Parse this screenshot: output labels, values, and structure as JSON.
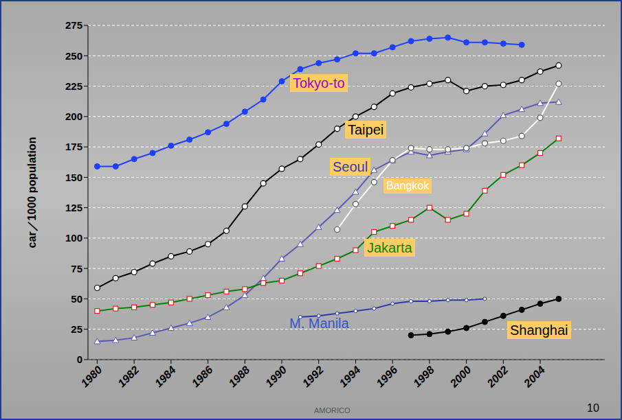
{
  "chart_data": {
    "type": "line",
    "y_label": "car／1000 population",
    "x": [
      1980,
      1981,
      1982,
      1983,
      1984,
      1985,
      1986,
      1987,
      1988,
      1989,
      1990,
      1991,
      1992,
      1993,
      1994,
      1995,
      1996,
      1997,
      1998,
      1999,
      2000,
      2001,
      2002,
      2003,
      2004,
      2005
    ],
    "xlim": [
      1979.5,
      2007.5
    ],
    "xticks": [
      1980,
      1982,
      1984,
      1986,
      1988,
      1990,
      1992,
      1994,
      1996,
      1998,
      2000,
      2002,
      2004
    ],
    "ylim": [
      0,
      275
    ],
    "yticks": [
      0,
      25,
      50,
      75,
      100,
      125,
      150,
      175,
      200,
      225,
      250,
      275
    ],
    "grid": true,
    "series": [
      {
        "name": "Tokyo-to",
        "color": "#1f3fff",
        "marker": "circle",
        "values": [
          159,
          159,
          165,
          170,
          176,
          181,
          187,
          194,
          204,
          214,
          229,
          239,
          244,
          247,
          252,
          252,
          257,
          262,
          264,
          265,
          261,
          261,
          260,
          259,
          null,
          null
        ]
      },
      {
        "name": "Taipei",
        "color": "#000000",
        "marker": "open_circle",
        "values": [
          59,
          67,
          72,
          79,
          85,
          89,
          95,
          106,
          126,
          145,
          157,
          165,
          177,
          190,
          200,
          208,
          219,
          224,
          227,
          230,
          221,
          225,
          226,
          230,
          237,
          242
        ]
      },
      {
        "name": "Seoul",
        "color": "#5a5ab4",
        "marker": "open_triangle",
        "values": [
          15,
          16,
          18,
          22,
          26,
          30,
          35,
          43,
          53,
          67,
          83,
          95,
          109,
          123,
          138,
          156,
          164,
          171,
          168,
          171,
          173,
          186,
          201,
          206,
          211,
          212
        ]
      },
      {
        "name": "Bangkok",
        "color": "#ffffff",
        "marker": "open_circle",
        "values": [
          null,
          null,
          null,
          null,
          null,
          null,
          null,
          null,
          null,
          null,
          null,
          null,
          null,
          107,
          128,
          146,
          164,
          174,
          173,
          173,
          174,
          178,
          180,
          184,
          199,
          227
        ]
      },
      {
        "name": "Jakarta",
        "color": "#008000",
        "marker": "open_square",
        "values": [
          40,
          42,
          43,
          45,
          47,
          50,
          53,
          56,
          58,
          63,
          65,
          71,
          77,
          83,
          90,
          105,
          110,
          115,
          125,
          115,
          120,
          139,
          152,
          160,
          170,
          182
        ]
      },
      {
        "name": "M. Manila",
        "color": "#2b3aa8",
        "marker": "small_circle",
        "values": [
          null,
          null,
          null,
          null,
          null,
          null,
          null,
          null,
          null,
          null,
          null,
          35,
          36,
          38,
          40,
          42,
          46,
          48,
          48,
          49,
          49,
          50,
          null,
          null,
          null,
          null
        ]
      },
      {
        "name": "Shanghai",
        "color": "#000000",
        "marker": "circle",
        "values": [
          null,
          null,
          null,
          null,
          null,
          null,
          null,
          null,
          null,
          null,
          null,
          null,
          null,
          null,
          null,
          null,
          null,
          20,
          21,
          23,
          26,
          31,
          36,
          41,
          46,
          50
        ]
      }
    ],
    "annotations": [
      "AMORICO",
      "10"
    ]
  }
}
